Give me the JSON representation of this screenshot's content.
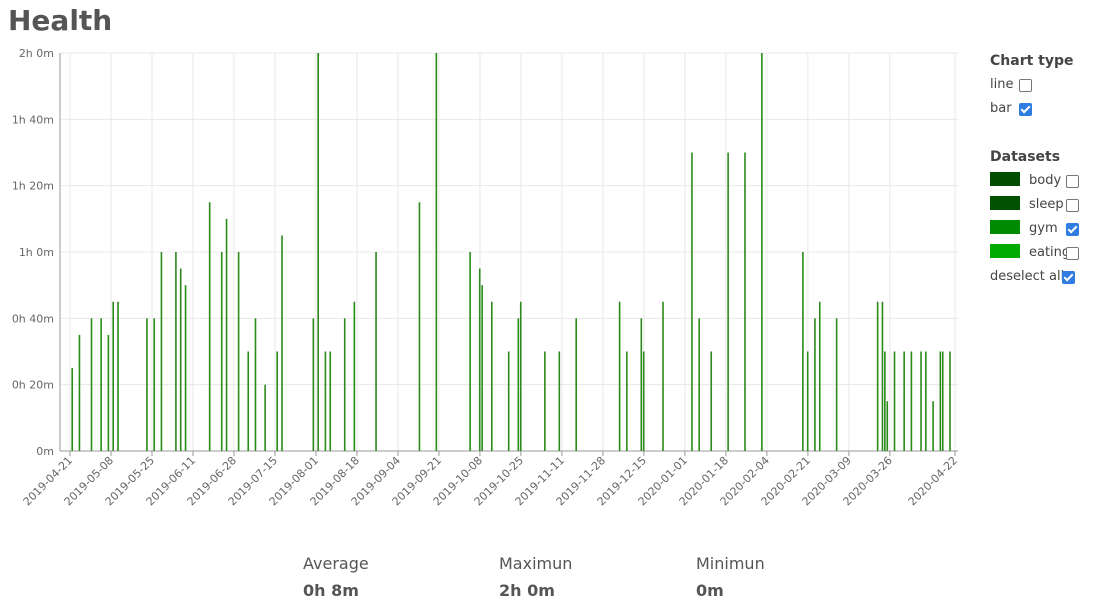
{
  "title": "Health",
  "chart_data": {
    "type": "bar",
    "color": "#2a8a1a",
    "x": [
      "2019-04-22",
      "2019-04-25",
      "2019-04-30",
      "2019-05-04",
      "2019-05-07",
      "2019-05-09",
      "2019-05-11",
      "2019-05-23",
      "2019-05-26",
      "2019-05-29",
      "2019-06-04",
      "2019-06-06",
      "2019-06-08",
      "2019-06-18",
      "2019-06-23",
      "2019-06-25",
      "2019-06-30",
      "2019-07-04",
      "2019-07-07",
      "2019-07-11",
      "2019-07-16",
      "2019-07-18",
      "2019-07-31",
      "2019-08-02",
      "2019-08-05",
      "2019-08-07",
      "2019-08-13",
      "2019-08-17",
      "2019-08-26",
      "2019-09-13",
      "2019-09-20",
      "2019-10-04",
      "2019-10-08",
      "2019-10-09",
      "2019-10-13",
      "2019-10-20",
      "2019-10-24",
      "2019-10-25",
      "2019-11-04",
      "2019-11-10",
      "2019-11-17",
      "2019-12-05",
      "2019-12-08",
      "2019-12-14",
      "2019-12-15",
      "2019-12-23",
      "2020-01-04",
      "2020-01-07",
      "2020-01-12",
      "2020-01-19",
      "2020-01-26",
      "2020-02-02",
      "2020-02-19",
      "2020-02-21",
      "2020-02-24",
      "2020-02-26",
      "2020-03-04",
      "2020-03-21",
      "2020-03-23",
      "2020-03-24",
      "2020-03-25",
      "2020-03-28",
      "2020-04-01",
      "2020-04-04",
      "2020-04-08",
      "2020-04-10",
      "2020-04-13",
      "2020-04-16",
      "2020-04-17",
      "2020-04-20"
    ],
    "values": [
      25,
      35,
      40,
      40,
      35,
      45,
      45,
      40,
      40,
      60,
      60,
      55,
      50,
      75,
      60,
      70,
      60,
      30,
      40,
      20,
      30,
      65,
      40,
      120,
      30,
      30,
      40,
      45,
      60,
      75,
      120,
      60,
      55,
      50,
      45,
      30,
      40,
      45,
      30,
      30,
      40,
      45,
      30,
      40,
      30,
      45,
      90,
      40,
      30,
      90,
      90,
      120,
      60,
      30,
      40,
      45,
      40,
      45,
      45,
      30,
      15,
      30,
      30,
      30,
      30,
      30,
      15,
      30,
      30,
      30
    ],
    "xlim": [
      "2019-04-21",
      "2020-04-22"
    ],
    "xticks": [
      "2019-04-21",
      "2019-05-08",
      "2019-05-25",
      "2019-06-11",
      "2019-06-28",
      "2019-07-15",
      "2019-08-01",
      "2019-08-18",
      "2019-09-04",
      "2019-09-21",
      "2019-10-08",
      "2019-10-25",
      "2019-11-11",
      "2019-11-28",
      "2019-12-15",
      "2020-01-01",
      "2020-01-18",
      "2020-02-04",
      "2020-02-21",
      "2020-03-09",
      "2020-03-26",
      "2020-04-22"
    ],
    "ylim": [
      0,
      120
    ],
    "yticks": [
      {
        "value": 0,
        "label": "0m"
      },
      {
        "value": 20,
        "label": "0h 20m"
      },
      {
        "value": 40,
        "label": "0h 40m"
      },
      {
        "value": 60,
        "label": "1h 0m"
      },
      {
        "value": 80,
        "label": "1h 20m"
      },
      {
        "value": 100,
        "label": "1h 40m"
      },
      {
        "value": 120,
        "label": "2h 0m"
      }
    ],
    "grid": true
  },
  "stats": [
    {
      "label": "Average",
      "value": "0h 8m"
    },
    {
      "label": "Maximun",
      "value": "2h 0m"
    },
    {
      "label": "Minimun",
      "value": "0m"
    }
  ],
  "sidebar": {
    "chart_type_title": "Chart type",
    "chart_types": [
      {
        "label": "line",
        "checked": false
      },
      {
        "label": "bar",
        "checked": true
      }
    ],
    "datasets_title": "Datasets",
    "datasets": [
      {
        "label": "body",
        "color": "#004d00",
        "checked": false
      },
      {
        "label": "sleep",
        "color": "#005200",
        "checked": false
      },
      {
        "label": "gym",
        "color": "#008a00",
        "checked": true
      },
      {
        "label": "eating",
        "color": "#00aa00",
        "checked": false
      }
    ],
    "deselect": {
      "label": "deselect all",
      "checked": true
    }
  }
}
